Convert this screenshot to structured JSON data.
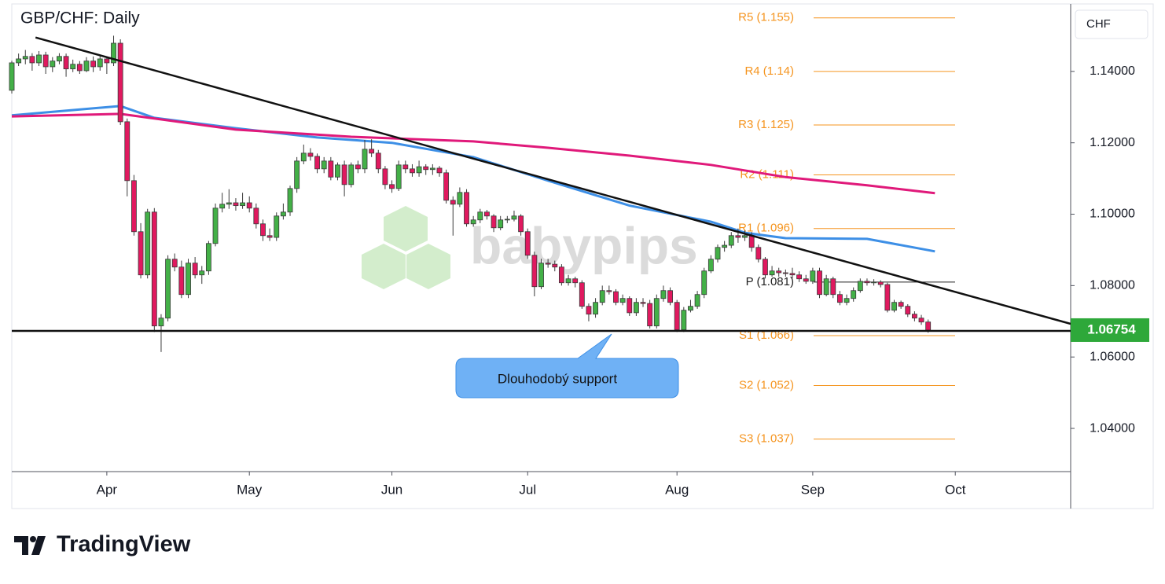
{
  "chart_data": {
    "type": "candlestick",
    "title": "GBP/CHF: Daily",
    "currency": "CHF",
    "watermark": "babypips",
    "annotation": "Dlouhodobý support",
    "x": [
      -14,
      -13,
      -12,
      -11,
      -10,
      -9,
      -8,
      -7,
      -6,
      -5,
      -4,
      -3,
      -2,
      -1,
      0,
      1,
      2,
      3,
      4,
      5,
      6,
      7,
      8,
      9,
      10,
      11,
      12,
      13,
      14,
      15,
      16,
      17,
      18,
      19,
      20,
      21,
      22,
      23,
      24,
      25,
      26,
      27,
      28,
      29,
      30,
      31,
      32,
      33,
      34,
      35,
      36,
      37,
      38,
      39,
      40,
      41,
      42,
      43,
      44,
      45,
      46,
      47,
      48,
      49,
      50,
      51,
      52,
      53,
      54,
      55,
      56,
      57,
      58,
      59,
      60,
      61,
      62,
      63,
      64,
      65,
      66,
      67,
      68,
      69,
      70,
      71,
      72,
      73,
      74,
      75,
      76,
      77,
      78,
      79,
      80,
      81,
      82,
      83,
      84,
      85,
      86,
      87,
      88,
      89,
      90,
      91,
      92,
      93,
      94,
      95,
      96,
      97,
      98,
      99,
      100,
      101,
      102,
      103,
      104,
      105,
      106,
      107,
      108,
      109,
      110,
      111,
      112,
      113,
      114,
      115,
      116,
      117,
      118,
      119,
      120,
      121
    ],
    "open": [
      1.1347,
      1.1424,
      1.1435,
      1.1442,
      1.1424,
      1.1446,
      1.1413,
      1.1429,
      1.1442,
      1.1407,
      1.142,
      1.1402,
      1.1429,
      1.1413,
      1.1435,
      1.1424,
      1.1479,
      1.1259,
      1.1094,
      1.0951,
      1.083,
      1.1006,
      1.0687,
      1.0709,
      1.0874,
      1.0852,
      1.0775,
      1.0863,
      1.083,
      1.0841,
      1.0918,
      1.1017,
      1.1028,
      1.1032,
      1.1024,
      1.1032,
      1.1017,
      1.0973,
      1.094,
      1.0935,
      1.0995,
      1.1006,
      1.1072,
      1.1149,
      1.1171,
      1.1162,
      1.1127,
      1.1149,
      1.1104,
      1.1138,
      1.1083,
      1.1138,
      1.1127,
      1.1182,
      1.1171,
      1.1127,
      1.1083,
      1.1072,
      1.1138,
      1.1127,
      1.1116,
      1.1133,
      1.1125,
      1.1129,
      1.1116,
      1.1039,
      1.1028,
      1.1061,
      1.0973,
      1.0984,
      1.1006,
      1.0995,
      1.0962,
      1.0984,
      1.0986,
      1.0995,
      1.0951,
      1.0885,
      1.0797,
      1.0863,
      1.086,
      1.0852,
      1.0808,
      1.0819,
      1.0808,
      1.0742,
      1.072,
      1.0753,
      1.0786,
      1.0783,
      1.0753,
      1.0764,
      1.0724,
      1.0753,
      1.075,
      1.0687,
      1.0764,
      1.0786,
      1.0753,
      1.0676,
      1.0731,
      1.0742,
      1.0775,
      1.0841,
      1.0874,
      1.0907,
      1.0913,
      1.094,
      1.0935,
      1.094,
      1.0907,
      1.0874,
      1.083,
      1.0841,
      1.0836,
      1.0834,
      1.083,
      1.0819,
      1.0812,
      1.0841,
      1.0775,
      1.0819,
      1.0775,
      1.0753,
      1.0764,
      1.0786,
      1.0812,
      1.0808,
      1.081,
      1.0803,
      1.0731,
      1.0753,
      1.0742,
      1.072,
      1.0709,
      1.0698
    ],
    "high": [
      1.143,
      1.145,
      1.146,
      1.1451,
      1.1457,
      1.1455,
      1.144,
      1.1451,
      1.145,
      1.1433,
      1.1429,
      1.144,
      1.1442,
      1.1446,
      1.1442,
      1.15,
      1.149,
      1.1268,
      1.111,
      1.0975,
      1.1015,
      1.1017,
      1.072,
      1.0885,
      1.089,
      1.087,
      1.0875,
      1.088,
      1.0855,
      1.0925,
      1.103,
      1.106,
      1.107,
      1.1045,
      1.106,
      1.105,
      1.103,
      1.0985,
      1.096,
      1.1005,
      1.103,
      1.108,
      1.116,
      1.1195,
      1.1185,
      1.117,
      1.116,
      1.116,
      1.1145,
      1.115,
      1.1145,
      1.115,
      1.1208,
      1.121,
      1.118,
      1.1135,
      1.1095,
      1.115,
      1.115,
      1.114,
      1.115,
      1.114,
      1.114,
      1.1135,
      1.1125,
      1.105,
      1.1075,
      1.107,
      1.0995,
      1.1015,
      1.1012,
      1.1,
      1.0995,
      1.0995,
      1.101,
      1.1,
      1.096,
      1.0895,
      1.0875,
      1.0875,
      1.087,
      1.086,
      1.083,
      1.0825,
      1.0815,
      1.075,
      1.0765,
      1.08,
      1.08,
      1.079,
      1.0775,
      1.077,
      1.0765,
      1.0765,
      1.076,
      1.0775,
      1.08,
      1.0795,
      1.076,
      1.074,
      1.076,
      1.0785,
      1.085,
      1.0885,
      1.0915,
      1.0925,
      1.095,
      1.096,
      1.0955,
      1.095,
      1.0915,
      1.088,
      1.0855,
      1.085,
      1.0845,
      1.085,
      1.084,
      1.083,
      1.085,
      1.085,
      1.083,
      1.0825,
      1.0785,
      1.0775,
      1.0795,
      1.082,
      1.082,
      1.0818,
      1.0815,
      1.0808,
      1.076,
      1.0758,
      1.0748,
      1.0728,
      1.0718,
      1.0705
    ],
    "low": [
      1.1338,
      1.1415,
      1.142,
      1.1402,
      1.1415,
      1.1393,
      1.1398,
      1.142,
      1.1385,
      1.1398,
      1.1393,
      1.1398,
      1.1398,
      1.1402,
      1.1393,
      1.1415,
      1.125,
      1.105,
      1.094,
      1.082,
      1.082,
      1.067,
      1.0614,
      1.07,
      1.084,
      1.0765,
      1.0765,
      1.082,
      1.0805,
      1.083,
      1.091,
      1.1005,
      1.1015,
      1.101,
      1.1015,
      1.1005,
      1.096,
      1.0925,
      1.0925,
      1.0925,
      1.0985,
      1.0995,
      1.106,
      1.114,
      1.115,
      1.1115,
      1.1115,
      1.1095,
      1.1095,
      1.105,
      1.1075,
      1.1115,
      1.1115,
      1.116,
      1.1115,
      1.107,
      1.106,
      1.1065,
      1.1115,
      1.1105,
      1.1105,
      1.111,
      1.111,
      1.1105,
      1.103,
      1.094,
      1.102,
      1.0965,
      1.0965,
      1.0975,
      1.0985,
      1.095,
      1.0955,
      1.0975,
      1.098,
      1.094,
      1.0875,
      1.077,
      1.079,
      1.085,
      1.084,
      1.08,
      1.08,
      1.0795,
      1.0735,
      1.07,
      1.071,
      1.0745,
      1.0775,
      1.0745,
      1.0745,
      1.0715,
      1.0715,
      1.074,
      1.068,
      1.068,
      1.0755,
      1.0745,
      1.067,
      1.067,
      1.0725,
      1.0735,
      1.0765,
      1.0835,
      1.0865,
      1.0895,
      1.0905,
      1.092,
      1.0925,
      1.0895,
      1.0865,
      1.082,
      1.0825,
      1.0825,
      1.0825,
      1.082,
      1.081,
      1.0805,
      1.0805,
      1.0765,
      1.077,
      1.0765,
      1.0745,
      1.0745,
      1.0755,
      1.078,
      1.08,
      1.08,
      1.0795,
      1.0725,
      1.0725,
      1.0735,
      1.0712,
      1.07,
      1.069,
      1.0668
    ],
    "close": [
      1.1424,
      1.1435,
      1.1442,
      1.1424,
      1.1446,
      1.1413,
      1.1429,
      1.1442,
      1.1407,
      1.142,
      1.1402,
      1.1429,
      1.1413,
      1.1435,
      1.1424,
      1.1479,
      1.1259,
      1.1094,
      1.0951,
      1.083,
      1.1006,
      1.0687,
      1.0709,
      1.0874,
      1.0852,
      1.0775,
      1.0863,
      1.083,
      1.0841,
      1.0918,
      1.1017,
      1.1028,
      1.1032,
      1.1024,
      1.1032,
      1.1017,
      1.0973,
      1.094,
      1.0935,
      1.0995,
      1.1006,
      1.1072,
      1.1149,
      1.1171,
      1.1162,
      1.1127,
      1.1149,
      1.1104,
      1.1138,
      1.1083,
      1.1138,
      1.1127,
      1.1182,
      1.1171,
      1.1127,
      1.1083,
      1.1072,
      1.1138,
      1.1127,
      1.1116,
      1.1133,
      1.1125,
      1.1129,
      1.1116,
      1.1039,
      1.1028,
      1.1061,
      1.0973,
      1.0984,
      1.1006,
      1.0995,
      1.0962,
      1.0984,
      1.0986,
      1.0995,
      1.0951,
      1.0885,
      1.0797,
      1.0863,
      1.086,
      1.0852,
      1.0808,
      1.0819,
      1.0808,
      1.0742,
      1.072,
      1.0753,
      1.0786,
      1.0783,
      1.0753,
      1.0764,
      1.0724,
      1.0753,
      1.075,
      1.0687,
      1.0764,
      1.0786,
      1.0753,
      1.0676,
      1.0731,
      1.0742,
      1.0775,
      1.0841,
      1.0874,
      1.0907,
      1.0913,
      1.094,
      1.0935,
      1.094,
      1.0907,
      1.0874,
      1.083,
      1.0841,
      1.0836,
      1.0834,
      1.083,
      1.0819,
      1.0812,
      1.0841,
      1.0775,
      1.0819,
      1.0775,
      1.0753,
      1.0764,
      1.0786,
      1.0812,
      1.0808,
      1.081,
      1.0803,
      1.0731,
      1.0753,
      1.0742,
      1.072,
      1.0709,
      1.0698,
      1.0675
    ],
    "up_color": "#43b047",
    "down_color": "#e0195f",
    "moving_averages": [
      {
        "color": "#3d8fe6",
        "x": [
          -14,
          2,
          7,
          19,
          31,
          42,
          54,
          65,
          77,
          89,
          94,
          100,
          112,
          122
        ],
        "values": [
          1.1277,
          1.1303,
          1.127,
          1.1241,
          1.1215,
          1.12,
          1.116,
          1.1094,
          1.1024,
          1.0979,
          1.0948,
          1.0933,
          1.0931,
          1.0896
        ]
      },
      {
        "color": "#e0197a",
        "x": [
          -14,
          2,
          19,
          36,
          54,
          65,
          77,
          89,
          100,
          112,
          122
        ],
        "values": [
          1.1274,
          1.1281,
          1.1237,
          1.1217,
          1.1204,
          1.1186,
          1.1164,
          1.1138,
          1.1104,
          1.1081,
          1.1059
        ]
      }
    ],
    "trendline": {
      "color": "#111111",
      "x": [
        -10.5,
        142
      ],
      "values": [
        1.1495,
        1.0693
      ]
    },
    "support": {
      "color": "#111111",
      "value": 1.0673
    },
    "pivots": [
      {
        "label": "R5 (1.155)",
        "value": 1.155,
        "color": "#f5941e"
      },
      {
        "label": "R4 (1.14)",
        "value": 1.14,
        "color": "#f5941e"
      },
      {
        "label": "R3 (1.125)",
        "value": 1.125,
        "color": "#f5941e"
      },
      {
        "label": "R2 (1.111)",
        "value": 1.111,
        "color": "#f5941e"
      },
      {
        "label": "R1 (1.096)",
        "value": 1.096,
        "color": "#f5941e"
      },
      {
        "label": "P (1.081)",
        "value": 1.081,
        "color": "#222222"
      },
      {
        "label": "S1 (1.066)",
        "value": 1.066,
        "color": "#f5941e"
      },
      {
        "label": "S2 (1.052)",
        "value": 1.052,
        "color": "#f5941e"
      },
      {
        "label": "S3 (1.037)",
        "value": 1.037,
        "color": "#f5941e"
      }
    ],
    "last_price": 1.06754,
    "last_price_color": "#2ea83a",
    "xlim": [
      -14,
      142
    ],
    "xticks": [
      {
        "value": 0,
        "label": "Apr"
      },
      {
        "value": 21,
        "label": "May"
      },
      {
        "value": 42,
        "label": "Jun"
      },
      {
        "value": 62,
        "label": "Jul"
      },
      {
        "value": 84,
        "label": "Aug"
      },
      {
        "value": 104,
        "label": "Sep"
      },
      {
        "value": 125,
        "label": "Oct"
      }
    ],
    "ylim": [
      1.0279,
      1.1589
    ],
    "yticks": [
      {
        "value": 1.04,
        "label": "1.04000"
      },
      {
        "value": 1.06,
        "label": "1.06000"
      },
      {
        "value": 1.08,
        "label": "1.08000"
      },
      {
        "value": 1.1,
        "label": "1.10000"
      },
      {
        "value": 1.12,
        "label": "1.12000"
      },
      {
        "value": 1.14,
        "label": "1.14000"
      }
    ]
  },
  "footer": {
    "brand": "TradingView"
  }
}
